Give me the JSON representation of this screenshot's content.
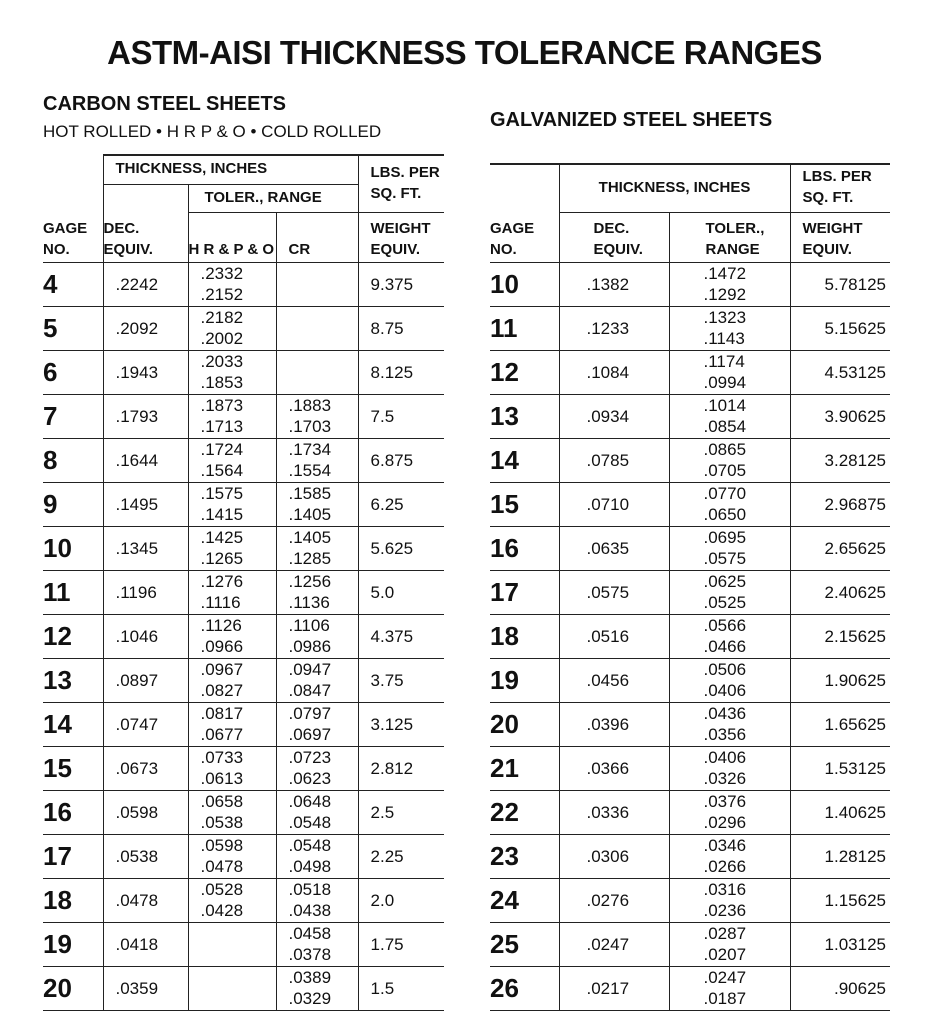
{
  "title": "ASTM-AISI THICKNESS TOLERANCE RANGES",
  "carbon": {
    "heading": "CARBON STEEL SHEETS",
    "subheading": "HOT ROLLED • H R P & O • COLD ROLLED",
    "headers": {
      "thickness": "THICKNESS, INCHES",
      "lbs": "LBS. PER SQ. FT.",
      "toler": "TOLER., RANGE",
      "gage": "GAGE NO.",
      "dec": "DEC. EQUIV.",
      "hr": "H R & P & O",
      "cr": "CR",
      "weight": "WEIGHT EQUIV."
    },
    "rows": [
      {
        "gage": "4",
        "dec": ".2242",
        "hr": [
          ".2332",
          ".2152"
        ],
        "cr": [],
        "weight": "9.375"
      },
      {
        "gage": "5",
        "dec": ".2092",
        "hr": [
          ".2182",
          ".2002"
        ],
        "cr": [],
        "weight": "8.75"
      },
      {
        "gage": "6",
        "dec": ".1943",
        "hr": [
          ".2033",
          ".1853"
        ],
        "cr": [],
        "weight": "8.125"
      },
      {
        "gage": "7",
        "dec": ".1793",
        "hr": [
          ".1873",
          ".1713"
        ],
        "cr": [
          ".1883",
          ".1703"
        ],
        "weight": "7.5"
      },
      {
        "gage": "8",
        "dec": ".1644",
        "hr": [
          ".1724",
          ".1564"
        ],
        "cr": [
          ".1734",
          ".1554"
        ],
        "weight": "6.875"
      },
      {
        "gage": "9",
        "dec": ".1495",
        "hr": [
          ".1575",
          ".1415"
        ],
        "cr": [
          ".1585",
          ".1405"
        ],
        "weight": "6.25"
      },
      {
        "gage": "10",
        "dec": ".1345",
        "hr": [
          ".1425",
          ".1265"
        ],
        "cr": [
          ".1405",
          ".1285"
        ],
        "weight": "5.625"
      },
      {
        "gage": "11",
        "dec": ".1196",
        "hr": [
          ".1276",
          ".1116"
        ],
        "cr": [
          ".1256",
          ".1136"
        ],
        "weight": "5.0"
      },
      {
        "gage": "12",
        "dec": ".1046",
        "hr": [
          ".1126",
          ".0966"
        ],
        "cr": [
          ".1106",
          ".0986"
        ],
        "weight": "4.375"
      },
      {
        "gage": "13",
        "dec": ".0897",
        "hr": [
          ".0967",
          ".0827"
        ],
        "cr": [
          ".0947",
          ".0847"
        ],
        "weight": "3.75"
      },
      {
        "gage": "14",
        "dec": ".0747",
        "hr": [
          ".0817",
          ".0677"
        ],
        "cr": [
          ".0797",
          ".0697"
        ],
        "weight": "3.125"
      },
      {
        "gage": "15",
        "dec": ".0673",
        "hr": [
          ".0733",
          ".0613"
        ],
        "cr": [
          ".0723",
          ".0623"
        ],
        "weight": "2.812"
      },
      {
        "gage": "16",
        "dec": ".0598",
        "hr": [
          ".0658",
          ".0538"
        ],
        "cr": [
          ".0648",
          ".0548"
        ],
        "weight": "2.5"
      },
      {
        "gage": "17",
        "dec": ".0538",
        "hr": [
          ".0598",
          ".0478"
        ],
        "cr": [
          ".0548",
          ".0498"
        ],
        "weight": "2.25"
      },
      {
        "gage": "18",
        "dec": ".0478",
        "hr": [
          ".0528",
          ".0428"
        ],
        "cr": [
          ".0518",
          ".0438"
        ],
        "weight": "2.0"
      },
      {
        "gage": "19",
        "dec": ".0418",
        "hr": [],
        "cr": [
          ".0458",
          ".0378"
        ],
        "weight": "1.75"
      },
      {
        "gage": "20",
        "dec": ".0359",
        "hr": [],
        "cr": [
          ".0389",
          ".0329"
        ],
        "weight": "1.5"
      }
    ]
  },
  "galvanized": {
    "heading": "GALVANIZED STEEL SHEETS",
    "headers": {
      "thickness": "THICKNESS, INCHES",
      "lbs": "LBS. PER SQ. FT.",
      "gage": "GAGE NO.",
      "dec": "DEC. EQUIV.",
      "toler": "TOLER., RANGE",
      "weight": "WEIGHT EQUIV."
    },
    "rows": [
      {
        "gage": "10",
        "dec": ".1382",
        "toler": [
          ".1472",
          ".1292"
        ],
        "weight": "5.78125"
      },
      {
        "gage": "11",
        "dec": ".1233",
        "toler": [
          ".1323",
          ".1143"
        ],
        "weight": "5.15625"
      },
      {
        "gage": "12",
        "dec": ".1084",
        "toler": [
          ".1174",
          ".0994"
        ],
        "weight": "4.53125"
      },
      {
        "gage": "13",
        "dec": ".0934",
        "toler": [
          ".1014",
          ".0854"
        ],
        "weight": "3.90625"
      },
      {
        "gage": "14",
        "dec": ".0785",
        "toler": [
          ".0865",
          ".0705"
        ],
        "weight": "3.28125"
      },
      {
        "gage": "15",
        "dec": ".0710",
        "toler": [
          ".0770",
          ".0650"
        ],
        "weight": "2.96875"
      },
      {
        "gage": "16",
        "dec": ".0635",
        "toler": [
          ".0695",
          ".0575"
        ],
        "weight": "2.65625"
      },
      {
        "gage": "17",
        "dec": ".0575",
        "toler": [
          ".0625",
          ".0525"
        ],
        "weight": "2.40625"
      },
      {
        "gage": "18",
        "dec": ".0516",
        "toler": [
          ".0566",
          ".0466"
        ],
        "weight": "2.15625"
      },
      {
        "gage": "19",
        "dec": ".0456",
        "toler": [
          ".0506",
          ".0406"
        ],
        "weight": "1.90625"
      },
      {
        "gage": "20",
        "dec": ".0396",
        "toler": [
          ".0436",
          ".0356"
        ],
        "weight": "1.65625"
      },
      {
        "gage": "21",
        "dec": ".0366",
        "toler": [
          ".0406",
          ".0326"
        ],
        "weight": "1.53125"
      },
      {
        "gage": "22",
        "dec": ".0336",
        "toler": [
          ".0376",
          ".0296"
        ],
        "weight": "1.40625"
      },
      {
        "gage": "23",
        "dec": ".0306",
        "toler": [
          ".0346",
          ".0266"
        ],
        "weight": "1.28125"
      },
      {
        "gage": "24",
        "dec": ".0276",
        "toler": [
          ".0316",
          ".0236"
        ],
        "weight": "1.15625"
      },
      {
        "gage": "25",
        "dec": ".0247",
        "toler": [
          ".0287",
          ".0207"
        ],
        "weight": "1.03125"
      },
      {
        "gage": "26",
        "dec": ".0217",
        "toler": [
          ".0247",
          ".0187"
        ],
        "weight": ".90625"
      }
    ]
  }
}
